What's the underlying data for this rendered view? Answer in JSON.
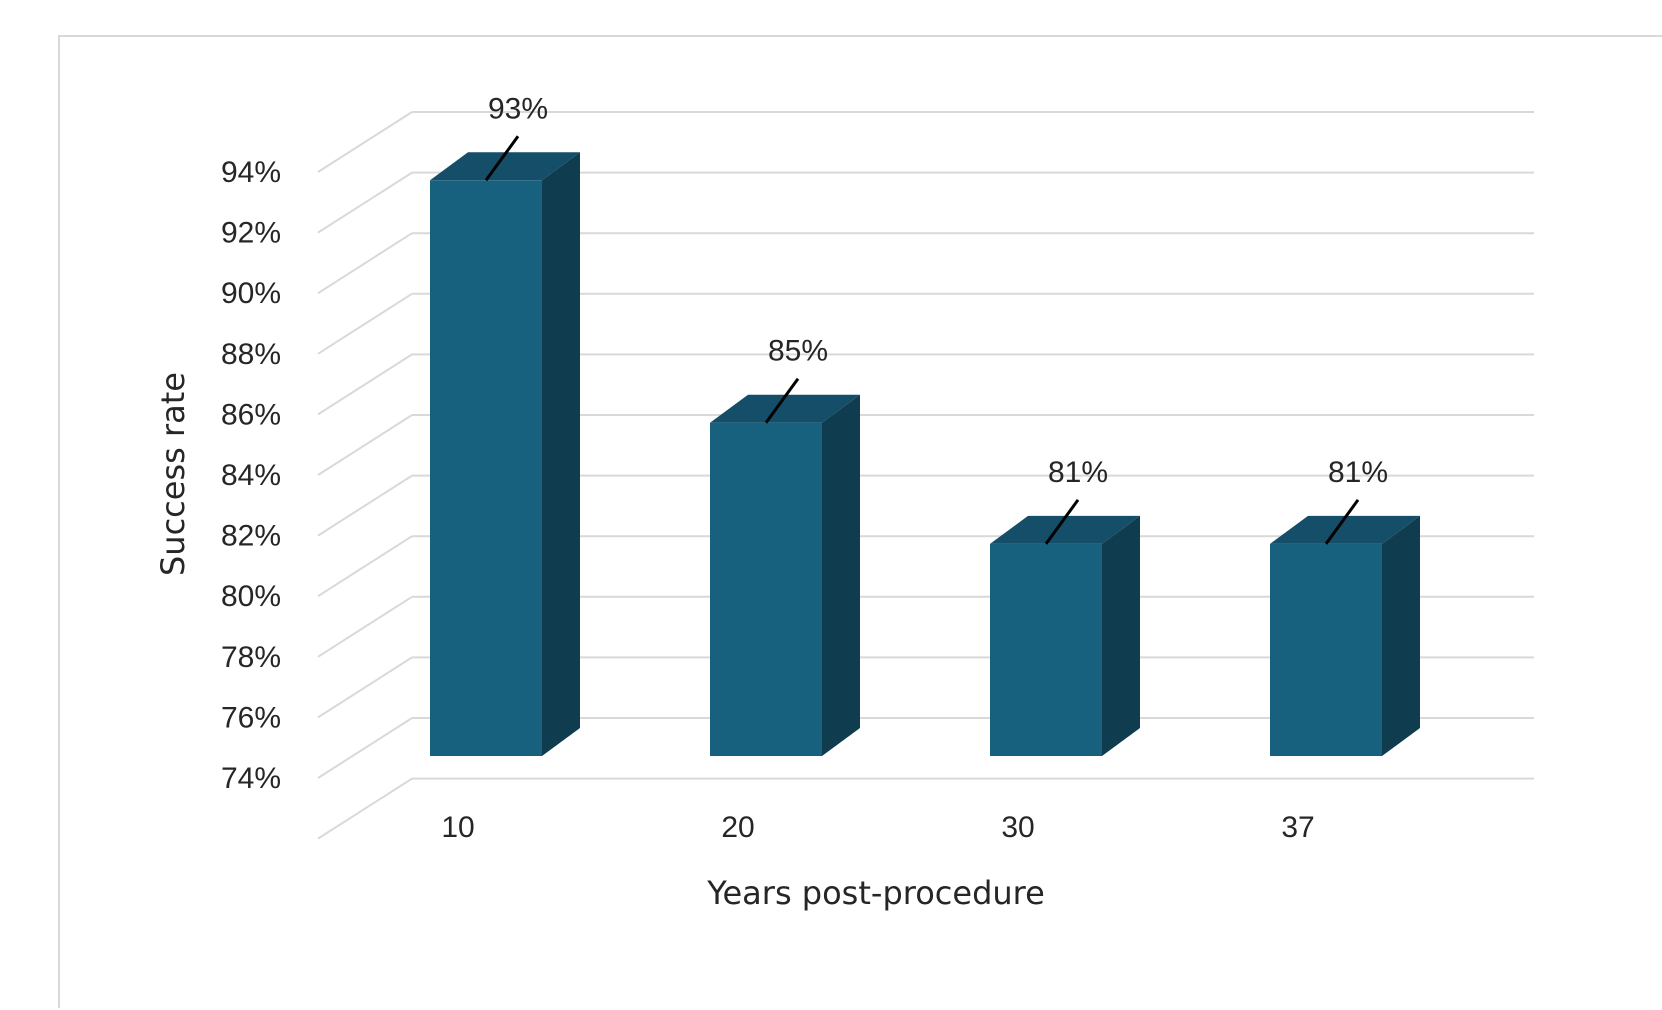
{
  "chart_data": {
    "type": "bar",
    "style": "3d-column",
    "categories": [
      "10",
      "20",
      "30",
      "37"
    ],
    "values": [
      93,
      85,
      81,
      81
    ],
    "data_labels": [
      "93%",
      "85%",
      "81%",
      "81%"
    ],
    "xlabel": "Years post-procedure",
    "ylabel": "Success rate",
    "ylim": [
      74,
      94
    ],
    "yticks": [
      "94%",
      "92%",
      "90%",
      "88%",
      "86%",
      "84%",
      "82%",
      "80%",
      "78%",
      "76%",
      "74%"
    ],
    "grid": true,
    "legend": "none",
    "colors": {
      "bar_front": "#17607e",
      "bar_top": "#154e68",
      "bar_side": "#0f3c4e",
      "grid": "#d9d9d9",
      "text": "#262626"
    }
  }
}
